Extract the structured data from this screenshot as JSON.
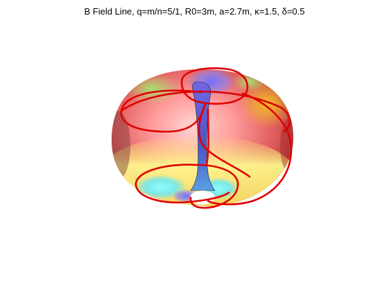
{
  "figure": {
    "title": "B Field Line, q=m/n=5/1, R0=3m, a=2.7m, κ=1.5, δ=0.5"
  },
  "colors": {
    "field_line": "#e00000",
    "background": "#ffffff"
  }
}
